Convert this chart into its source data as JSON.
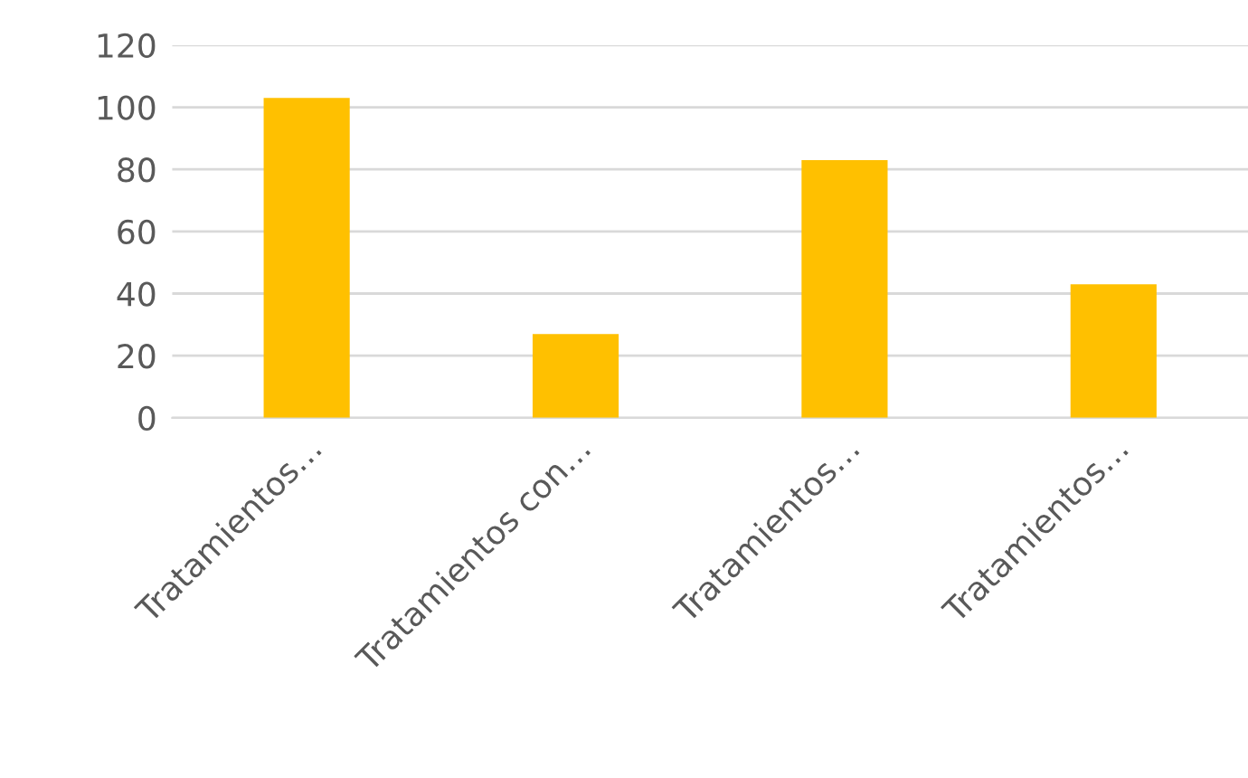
{
  "chart_data": {
    "type": "bar",
    "categories": [
      "Tratamientos…",
      "Tratamientos con…",
      "Tratamientos…",
      "Tratamientos…"
    ],
    "values": [
      103,
      27,
      83,
      43
    ],
    "color": "#ffc000",
    "ylim": [
      0,
      120
    ],
    "yticks": [
      0,
      20,
      40,
      60,
      80,
      100,
      120
    ],
    "grid": "y",
    "legend": false
  }
}
